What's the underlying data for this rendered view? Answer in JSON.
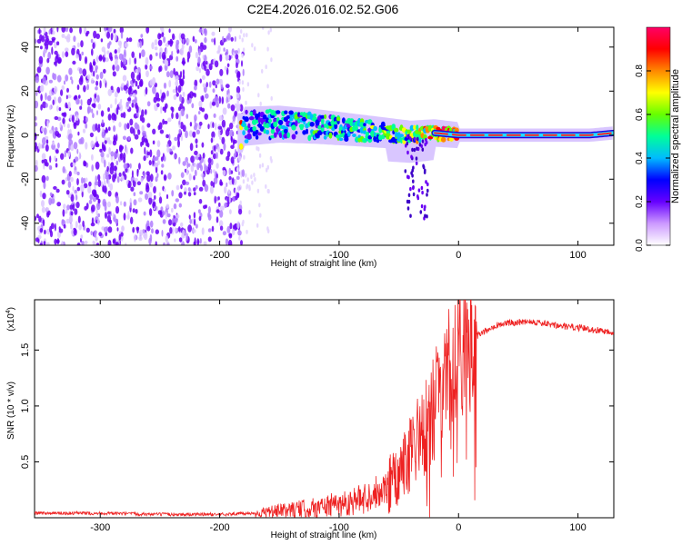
{
  "figure": {
    "title": "C2E4.2026.016.02.52.G06"
  },
  "chart_data": [
    {
      "type": "heatmap",
      "xlabel": "Height of straight line (km)",
      "ylabel": "Frequency (Hz)",
      "xlim": [
        -355,
        130
      ],
      "ylim": [
        -50,
        49
      ],
      "x_ticks": [
        -300,
        -200,
        -100,
        0,
        100
      ],
      "y_ticks": [
        -40,
        -20,
        0,
        20,
        40
      ],
      "colorbar": {
        "label": "Normalized spectral amplitude",
        "range": [
          0,
          1
        ],
        "ticks": [
          "0.0",
          "0.2",
          "0.4",
          "0.6",
          "0.8"
        ],
        "colors": [
          "#ffffff",
          "#cc99ff",
          "#6600ff",
          "#0000ff",
          "#00bbff",
          "#00ff99",
          "#66ff00",
          "#ffff00",
          "#ff8800",
          "#ff0000",
          "#ff0066"
        ]
      },
      "signal_track": [
        {
          "x": -180,
          "freq": 4,
          "amp": 0.35
        },
        {
          "x": -150,
          "freq": 5,
          "amp": 0.4
        },
        {
          "x": -120,
          "freq": 4,
          "amp": 0.4
        },
        {
          "x": -100,
          "freq": 3,
          "amp": 0.45
        },
        {
          "x": -80,
          "freq": 2,
          "amp": 0.45
        },
        {
          "x": -60,
          "freq": 1,
          "amp": 0.5
        },
        {
          "x": -40,
          "freq": 0,
          "amp": 0.55
        },
        {
          "x": -20,
          "freq": 1,
          "amp": 0.7
        },
        {
          "x": 0,
          "freq": 0,
          "amp": 0.85
        },
        {
          "x": 40,
          "freq": 0,
          "amp": 0.8
        },
        {
          "x": 80,
          "freq": 0,
          "amp": 0.75
        },
        {
          "x": 110,
          "freq": 0,
          "amp": 0.8
        },
        {
          "x": 130,
          "freq": 1,
          "amp": 0.75
        }
      ]
    },
    {
      "type": "line",
      "xlabel": "Height of straight line (km)",
      "ylabel": "SNR (10 * v/v)",
      "multiplier_label": "(x10",
      "multiplier_exp": "4",
      "xlim": [
        -355,
        130
      ],
      "ylim": [
        0,
        1.95
      ],
      "x_ticks": [
        -300,
        -200,
        -100,
        0,
        100
      ],
      "y_ticks": [
        "0.5",
        "1.0",
        "1.5"
      ],
      "y_tick_values": [
        0.5,
        1.0,
        1.5
      ],
      "series": [
        {
          "color": "#ee2222",
          "x": [
            -355,
            -300,
            -250,
            -200,
            -170,
            -150,
            -120,
            -100,
            -80,
            -60,
            -50,
            -40,
            -30,
            -20,
            -15,
            -10,
            -5,
            0,
            10,
            20,
            30,
            40,
            60,
            80,
            100,
            130
          ],
          "y": [
            0.04,
            0.04,
            0.03,
            0.03,
            0.04,
            0.06,
            0.09,
            0.12,
            0.17,
            0.28,
            0.38,
            0.55,
            0.75,
            1.0,
            1.2,
            1.3,
            1.4,
            1.5,
            1.6,
            1.65,
            1.72,
            1.74,
            1.76,
            1.72,
            1.7,
            1.66
          ]
        }
      ]
    }
  ]
}
